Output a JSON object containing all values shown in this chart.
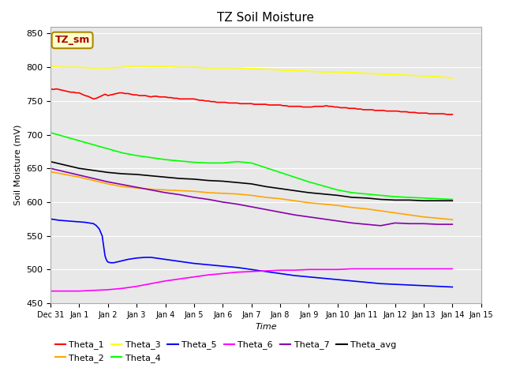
{
  "title": "TZ Soil Moisture",
  "xlabel": "Time",
  "ylabel": "Soil Moisture (mV)",
  "ylim": [
    450,
    860
  ],
  "xlim": [
    0,
    15
  ],
  "background_color": "#e8e8e8",
  "legend_label": "TZ_sm",
  "series": {
    "Theta_1": {
      "color": "red",
      "points": [
        [
          0,
          768
        ],
        [
          0.1,
          767
        ],
        [
          0.2,
          768
        ],
        [
          0.3,
          767
        ],
        [
          0.4,
          766
        ],
        [
          0.5,
          765
        ],
        [
          0.6,
          764
        ],
        [
          0.7,
          763
        ],
        [
          0.8,
          763
        ],
        [
          0.9,
          762
        ],
        [
          1.0,
          762
        ],
        [
          1.1,
          760
        ],
        [
          1.2,
          758
        ],
        [
          1.3,
          757
        ],
        [
          1.4,
          755
        ],
        [
          1.5,
          753
        ],
        [
          1.6,
          754
        ],
        [
          1.7,
          756
        ],
        [
          1.8,
          758
        ],
        [
          1.9,
          760
        ],
        [
          2.0,
          758
        ],
        [
          2.1,
          759
        ],
        [
          2.2,
          760
        ],
        [
          2.3,
          761
        ],
        [
          2.4,
          762
        ],
        [
          2.5,
          762
        ],
        [
          2.6,
          761
        ],
        [
          2.7,
          761
        ],
        [
          2.8,
          760
        ],
        [
          2.9,
          759
        ],
        [
          3.0,
          759
        ],
        [
          3.1,
          758
        ],
        [
          3.2,
          758
        ],
        [
          3.3,
          758
        ],
        [
          3.4,
          757
        ],
        [
          3.5,
          756
        ],
        [
          3.6,
          757
        ],
        [
          3.7,
          757
        ],
        [
          3.8,
          756
        ],
        [
          3.9,
          756
        ],
        [
          4.0,
          756
        ],
        [
          4.1,
          755
        ],
        [
          4.2,
          755
        ],
        [
          4.3,
          754
        ],
        [
          4.4,
          754
        ],
        [
          4.5,
          753
        ],
        [
          4.6,
          753
        ],
        [
          4.7,
          753
        ],
        [
          4.8,
          753
        ],
        [
          4.9,
          753
        ],
        [
          5.0,
          753
        ],
        [
          5.1,
          752
        ],
        [
          5.2,
          751
        ],
        [
          5.3,
          751
        ],
        [
          5.4,
          750
        ],
        [
          5.5,
          750
        ],
        [
          5.6,
          749
        ],
        [
          5.7,
          749
        ],
        [
          5.8,
          748
        ],
        [
          5.9,
          748
        ],
        [
          6.0,
          748
        ],
        [
          6.1,
          748
        ],
        [
          6.2,
          747
        ],
        [
          6.3,
          747
        ],
        [
          6.4,
          747
        ],
        [
          6.5,
          747
        ],
        [
          6.6,
          746
        ],
        [
          6.7,
          746
        ],
        [
          6.8,
          746
        ],
        [
          6.9,
          746
        ],
        [
          7.0,
          746
        ],
        [
          7.1,
          745
        ],
        [
          7.2,
          745
        ],
        [
          7.3,
          745
        ],
        [
          7.4,
          745
        ],
        [
          7.5,
          745
        ],
        [
          7.6,
          744
        ],
        [
          7.7,
          744
        ],
        [
          7.8,
          744
        ],
        [
          7.9,
          744
        ],
        [
          8.0,
          744
        ],
        [
          8.1,
          743
        ],
        [
          8.2,
          743
        ],
        [
          8.3,
          742
        ],
        [
          8.4,
          742
        ],
        [
          8.5,
          742
        ],
        [
          8.6,
          742
        ],
        [
          8.7,
          742
        ],
        [
          8.8,
          741
        ],
        [
          8.9,
          741
        ],
        [
          9.0,
          741
        ],
        [
          9.1,
          741
        ],
        [
          9.2,
          742
        ],
        [
          9.3,
          742
        ],
        [
          9.4,
          742
        ],
        [
          9.5,
          742
        ],
        [
          9.6,
          743
        ],
        [
          9.7,
          742
        ],
        [
          9.8,
          742
        ],
        [
          9.9,
          741
        ],
        [
          10.0,
          741
        ],
        [
          10.1,
          740
        ],
        [
          10.2,
          740
        ],
        [
          10.3,
          740
        ],
        [
          10.4,
          739
        ],
        [
          10.5,
          739
        ],
        [
          10.6,
          739
        ],
        [
          10.7,
          738
        ],
        [
          10.8,
          738
        ],
        [
          10.9,
          737
        ],
        [
          11.0,
          737
        ],
        [
          11.1,
          737
        ],
        [
          11.2,
          737
        ],
        [
          11.3,
          736
        ],
        [
          11.4,
          736
        ],
        [
          11.5,
          736
        ],
        [
          11.6,
          736
        ],
        [
          11.7,
          735
        ],
        [
          11.8,
          735
        ],
        [
          11.9,
          735
        ],
        [
          12.0,
          735
        ],
        [
          12.1,
          735
        ],
        [
          12.2,
          734
        ],
        [
          12.3,
          734
        ],
        [
          12.4,
          734
        ],
        [
          12.5,
          733
        ],
        [
          12.6,
          733
        ],
        [
          12.7,
          733
        ],
        [
          12.8,
          732
        ],
        [
          12.9,
          732
        ],
        [
          13.0,
          732
        ],
        [
          13.1,
          732
        ],
        [
          13.2,
          731
        ],
        [
          13.3,
          731
        ],
        [
          13.4,
          731
        ],
        [
          13.5,
          731
        ],
        [
          13.6,
          731
        ],
        [
          13.7,
          731
        ],
        [
          13.8,
          730
        ],
        [
          13.9,
          730
        ],
        [
          14.0,
          730
        ]
      ]
    },
    "Theta_2": {
      "color": "orange",
      "points": [
        [
          0,
          645
        ],
        [
          0.5,
          641
        ],
        [
          1.0,
          637
        ],
        [
          1.5,
          632
        ],
        [
          2.0,
          627
        ],
        [
          2.5,
          623
        ],
        [
          3.0,
          621
        ],
        [
          3.5,
          619
        ],
        [
          4.0,
          618
        ],
        [
          4.5,
          617
        ],
        [
          5.0,
          616
        ],
        [
          5.5,
          614
        ],
        [
          6.0,
          613
        ],
        [
          6.5,
          612
        ],
        [
          7.0,
          610
        ],
        [
          7.5,
          607
        ],
        [
          8.0,
          605
        ],
        [
          8.5,
          602
        ],
        [
          9.0,
          599
        ],
        [
          9.5,
          597
        ],
        [
          10.0,
          595
        ],
        [
          10.5,
          592
        ],
        [
          11.0,
          590
        ],
        [
          11.5,
          587
        ],
        [
          12.0,
          584
        ],
        [
          12.5,
          581
        ],
        [
          13.0,
          578
        ],
        [
          13.5,
          576
        ],
        [
          14.0,
          574
        ]
      ]
    },
    "Theta_3": {
      "color": "yellow",
      "points": [
        [
          0,
          801
        ],
        [
          0.5,
          800
        ],
        [
          1.0,
          800
        ],
        [
          1.5,
          799
        ],
        [
          2.0,
          799
        ],
        [
          2.5,
          800
        ],
        [
          3.0,
          802
        ],
        [
          3.5,
          801
        ],
        [
          4.0,
          801
        ],
        [
          4.5,
          800
        ],
        [
          5.0,
          800
        ],
        [
          5.5,
          799
        ],
        [
          6.0,
          799
        ],
        [
          6.5,
          799
        ],
        [
          7.0,
          798
        ],
        [
          7.5,
          797
        ],
        [
          8.0,
          796
        ],
        [
          8.5,
          795
        ],
        [
          9.0,
          794
        ],
        [
          9.5,
          793
        ],
        [
          10.0,
          793
        ],
        [
          10.5,
          792
        ],
        [
          11.0,
          791
        ],
        [
          11.5,
          790
        ],
        [
          12.0,
          789
        ],
        [
          12.5,
          788
        ],
        [
          13.0,
          787
        ],
        [
          13.5,
          786
        ],
        [
          14.0,
          784
        ]
      ]
    },
    "Theta_4": {
      "color": "lime",
      "points": [
        [
          0,
          703
        ],
        [
          0.5,
          697
        ],
        [
          1.0,
          691
        ],
        [
          1.5,
          685
        ],
        [
          2.0,
          679
        ],
        [
          2.5,
          673
        ],
        [
          3.0,
          669
        ],
        [
          3.5,
          666
        ],
        [
          4.0,
          663
        ],
        [
          4.5,
          661
        ],
        [
          5.0,
          659
        ],
        [
          5.5,
          658
        ],
        [
          6.0,
          658
        ],
        [
          6.5,
          660
        ],
        [
          7.0,
          658
        ],
        [
          7.5,
          651
        ],
        [
          8.0,
          644
        ],
        [
          8.5,
          637
        ],
        [
          9.0,
          630
        ],
        [
          9.5,
          624
        ],
        [
          10.0,
          618
        ],
        [
          10.5,
          614
        ],
        [
          11.0,
          612
        ],
        [
          11.5,
          610
        ],
        [
          12.0,
          608
        ],
        [
          12.5,
          607
        ],
        [
          13.0,
          606
        ],
        [
          13.5,
          605
        ],
        [
          14.0,
          604
        ]
      ]
    },
    "Theta_5": {
      "color": "blue",
      "points": [
        [
          0,
          575
        ],
        [
          0.3,
          573
        ],
        [
          0.6,
          572
        ],
        [
          0.9,
          571
        ],
        [
          1.2,
          570
        ],
        [
          1.5,
          568
        ],
        [
          1.6,
          565
        ],
        [
          1.7,
          560
        ],
        [
          1.8,
          550
        ],
        [
          1.85,
          535
        ],
        [
          1.9,
          520
        ],
        [
          1.95,
          514
        ],
        [
          2.0,
          511
        ],
        [
          2.1,
          510
        ],
        [
          2.2,
          510
        ],
        [
          2.3,
          511
        ],
        [
          2.5,
          513
        ],
        [
          2.7,
          515
        ],
        [
          3.0,
          517
        ],
        [
          3.3,
          518
        ],
        [
          3.5,
          518
        ],
        [
          4.0,
          515
        ],
        [
          4.5,
          512
        ],
        [
          5.0,
          509
        ],
        [
          5.5,
          507
        ],
        [
          6.0,
          505
        ],
        [
          6.5,
          503
        ],
        [
          7.0,
          500
        ],
        [
          7.5,
          497
        ],
        [
          8.0,
          494
        ],
        [
          8.5,
          491
        ],
        [
          9.0,
          489
        ],
        [
          9.5,
          487
        ],
        [
          10.0,
          485
        ],
        [
          10.5,
          483
        ],
        [
          11.0,
          481
        ],
        [
          11.5,
          479
        ],
        [
          12.0,
          478
        ],
        [
          12.5,
          477
        ],
        [
          13.0,
          476
        ],
        [
          13.5,
          475
        ],
        [
          14.0,
          474
        ]
      ]
    },
    "Theta_6": {
      "color": "#ff00ff",
      "points": [
        [
          0,
          468
        ],
        [
          0.5,
          468
        ],
        [
          1.0,
          468
        ],
        [
          1.5,
          469
        ],
        [
          2.0,
          470
        ],
        [
          2.5,
          472
        ],
        [
          3.0,
          475
        ],
        [
          3.5,
          479
        ],
        [
          4.0,
          483
        ],
        [
          4.5,
          486
        ],
        [
          5.0,
          489
        ],
        [
          5.5,
          492
        ],
        [
          6.0,
          494
        ],
        [
          6.5,
          496
        ],
        [
          7.0,
          497
        ],
        [
          7.5,
          498
        ],
        [
          8.0,
          499
        ],
        [
          8.5,
          499
        ],
        [
          9.0,
          500
        ],
        [
          9.5,
          500
        ],
        [
          10.0,
          500
        ],
        [
          10.5,
          501
        ],
        [
          11.0,
          501
        ],
        [
          11.5,
          501
        ],
        [
          12.0,
          501
        ],
        [
          12.5,
          501
        ],
        [
          13.0,
          501
        ],
        [
          13.5,
          501
        ],
        [
          14.0,
          501
        ]
      ]
    },
    "Theta_7": {
      "color": "#8800aa",
      "points": [
        [
          0,
          650
        ],
        [
          0.5,
          645
        ],
        [
          1.0,
          640
        ],
        [
          1.5,
          635
        ],
        [
          2.0,
          630
        ],
        [
          2.5,
          626
        ],
        [
          3.0,
          622
        ],
        [
          3.5,
          618
        ],
        [
          4.0,
          614
        ],
        [
          4.5,
          611
        ],
        [
          5.0,
          607
        ],
        [
          5.5,
          604
        ],
        [
          6.0,
          600
        ],
        [
          6.5,
          597
        ],
        [
          7.0,
          593
        ],
        [
          7.5,
          589
        ],
        [
          8.0,
          585
        ],
        [
          8.5,
          581
        ],
        [
          9.0,
          578
        ],
        [
          9.5,
          575
        ],
        [
          10.0,
          572
        ],
        [
          10.5,
          569
        ],
        [
          11.0,
          567
        ],
        [
          11.5,
          565
        ],
        [
          12.0,
          569
        ],
        [
          12.5,
          568
        ],
        [
          13.0,
          568
        ],
        [
          13.5,
          567
        ],
        [
          14.0,
          567
        ]
      ]
    },
    "Theta_avg": {
      "color": "black",
      "points": [
        [
          0,
          660
        ],
        [
          0.5,
          655
        ],
        [
          1.0,
          650
        ],
        [
          1.5,
          647
        ],
        [
          2.0,
          644
        ],
        [
          2.5,
          642
        ],
        [
          3.0,
          641
        ],
        [
          3.5,
          639
        ],
        [
          4.0,
          637
        ],
        [
          4.5,
          635
        ],
        [
          5.0,
          634
        ],
        [
          5.5,
          632
        ],
        [
          6.0,
          631
        ],
        [
          6.5,
          629
        ],
        [
          7.0,
          627
        ],
        [
          7.5,
          623
        ],
        [
          8.0,
          620
        ],
        [
          8.5,
          617
        ],
        [
          9.0,
          614
        ],
        [
          9.5,
          612
        ],
        [
          10.0,
          610
        ],
        [
          10.5,
          607
        ],
        [
          11.0,
          606
        ],
        [
          11.5,
          604
        ],
        [
          12.0,
          603
        ],
        [
          12.5,
          603
        ],
        [
          13.0,
          602
        ],
        [
          13.5,
          602
        ],
        [
          14.0,
          602
        ]
      ]
    }
  },
  "xtick_labels": [
    "Dec 31",
    "Jan 1",
    "Jan 2",
    "Jan 3",
    "Jan 4",
    "Jan 5",
    "Jan 6",
    "Jan 7",
    "Jan 8",
    "Jan 9",
    "Jan 10",
    "Jan 11",
    "Jan 12",
    "Jan 13",
    "Jan 14",
    "Jan 15"
  ],
  "xtick_positions": [
    0,
    1,
    2,
    3,
    4,
    5,
    6,
    7,
    8,
    9,
    10,
    11,
    12,
    13,
    14,
    15
  ],
  "ytick_positions": [
    450,
    500,
    550,
    600,
    650,
    700,
    750,
    800,
    850
  ],
  "grid_color": "white",
  "legend_ncol_row1": 6,
  "legend_ncol_row2": 2
}
